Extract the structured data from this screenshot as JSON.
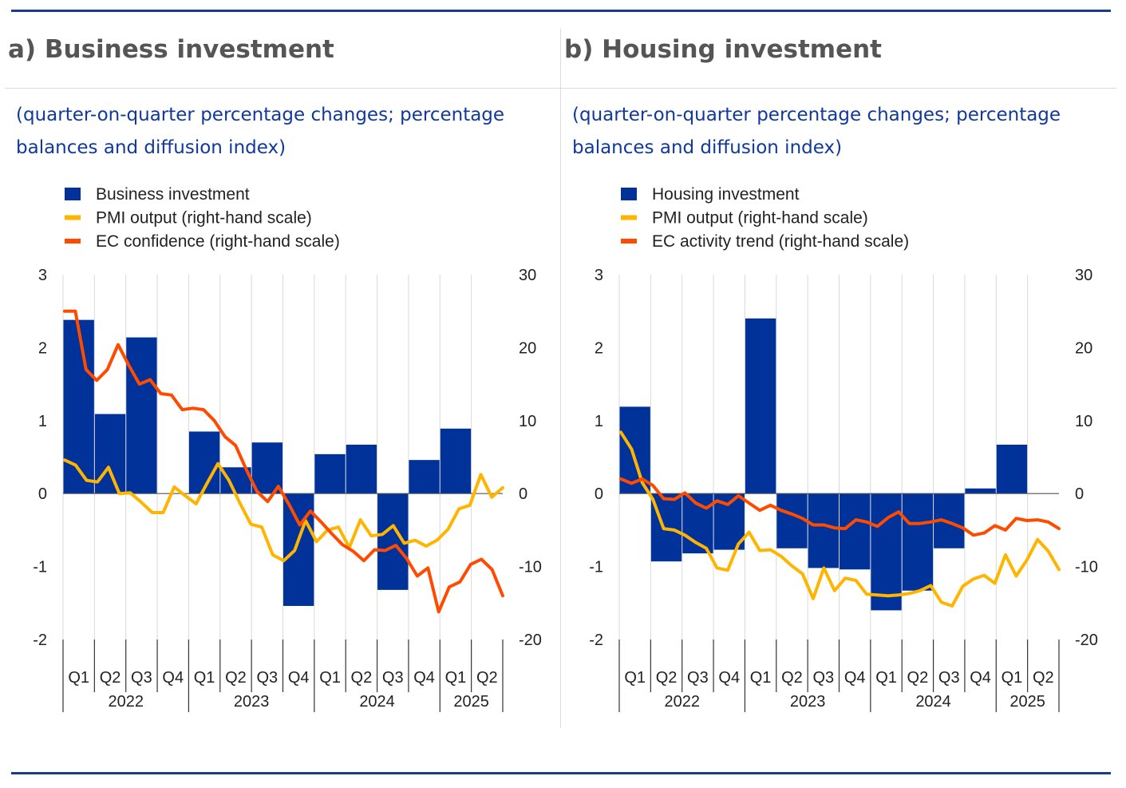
{
  "panels": [
    {
      "title": "a) Business investment",
      "subtitle": "(quarter-on-quarter percentage changes; percentage balances and diffusion index)"
    },
    {
      "title": "b) Housing investment",
      "subtitle": "(quarter-on-quarter percentage changes; percentage balances and diffusion index)"
    }
  ],
  "colors": {
    "bar": "#003299",
    "pmi": "#ffb400",
    "ec": "#ff4b00",
    "rule": "#1a3a8a",
    "subtitle": "#10399a"
  },
  "chart_data": [
    {
      "type": "bar",
      "title": "a) Business investment",
      "quarters": [
        "Q1",
        "Q2",
        "Q3",
        "Q4",
        "Q1",
        "Q2",
        "Q3",
        "Q4",
        "Q1",
        "Q2",
        "Q3",
        "Q4",
        "Q1",
        "Q2"
      ],
      "years": [
        {
          "label": "2022",
          "start": 0,
          "span": 4
        },
        {
          "label": "2023",
          "start": 4,
          "span": 4
        },
        {
          "label": "2024",
          "start": 8,
          "span": 4
        },
        {
          "label": "2025",
          "start": 12,
          "span": 2
        }
      ],
      "ylim_left": [
        -2,
        3
      ],
      "yticks_left": [
        "3",
        "2",
        "1",
        "0",
        "-1",
        "-2"
      ],
      "ylim_right": [
        -20,
        30
      ],
      "yticks_right": [
        "30",
        "20",
        "10",
        "0",
        "-10",
        "-20"
      ],
      "legend": [
        "Business investment",
        "PMI output (right-hand scale)",
        "EC confidence (right-hand scale)"
      ],
      "bars": {
        "name": "Business investment",
        "values": [
          2.38,
          1.09,
          2.14,
          0.0,
          0.85,
          0.36,
          0.7,
          -1.54,
          0.54,
          0.67,
          -1.32,
          0.46,
          0.89,
          0.0
        ]
      },
      "lines": [
        {
          "name": "PMI output (right-hand scale)",
          "color_key": "pmi",
          "values": [
            4.6,
            3.9,
            1.8,
            1.6,
            3.6,
            0,
            0.1,
            -1.2,
            -2.6,
            -2.6,
            0.9,
            -0.3,
            -1.4,
            1.4,
            4.1,
            1.8,
            -1.3,
            -4.2,
            -4.6,
            -8.4,
            -9.2,
            -7.8,
            -3.7,
            -6.6,
            -5,
            -4.6,
            -7.4,
            -3.6,
            -5.8,
            -5.6,
            -4.4,
            -6.8,
            -6.4,
            -7.2,
            -6.4,
            -4.9,
            -2.1,
            -1.6,
            2.6,
            -0.5,
            0.8
          ]
        },
        {
          "name": "EC confidence (right-hand scale)",
          "color_key": "ec",
          "values": [
            25,
            25,
            17,
            15.5,
            17,
            20.4,
            17.6,
            15,
            15.6,
            13.7,
            13.5,
            11.5,
            11.7,
            11.5,
            10,
            7.8,
            6.6,
            3.3,
            0.3,
            -1.1,
            1,
            -1.5,
            -4.3,
            -2.4,
            -3.9,
            -5.5,
            -7,
            -7.9,
            -9.2,
            -7.7,
            -7.8,
            -7.1,
            -8.9,
            -11.3,
            -10.2,
            -16.2,
            -12.8,
            -12.1,
            -9.7,
            -9,
            -10.4,
            -14
          ]
        }
      ]
    },
    {
      "type": "bar",
      "title": "b) Housing investment",
      "quarters": [
        "Q1",
        "Q2",
        "Q3",
        "Q4",
        "Q1",
        "Q2",
        "Q3",
        "Q4",
        "Q1",
        "Q2",
        "Q3",
        "Q4",
        "Q1",
        "Q2"
      ],
      "years": [
        {
          "label": "2022",
          "start": 0,
          "span": 4
        },
        {
          "label": "2023",
          "start": 4,
          "span": 4
        },
        {
          "label": "2024",
          "start": 8,
          "span": 4
        },
        {
          "label": "2025",
          "start": 12,
          "span": 2
        }
      ],
      "ylim_left": [
        -2,
        3
      ],
      "yticks_left": [
        "3",
        "2",
        "1",
        "0",
        "-1",
        "-2"
      ],
      "ylim_right": [
        -20,
        30
      ],
      "yticks_right": [
        "30",
        "20",
        "10",
        "0",
        "-10",
        "-20"
      ],
      "legend": [
        "Housing investment",
        "PMI output (right-hand scale)",
        "EC activity trend (right-hand scale)"
      ],
      "bars": {
        "name": "Housing investment",
        "values": [
          1.19,
          -0.93,
          -0.82,
          -0.77,
          2.4,
          -0.75,
          -1.02,
          -1.04,
          -1.6,
          -1.33,
          -0.75,
          0.07,
          0.67,
          0.0
        ]
      },
      "lines": [
        {
          "name": "PMI output (right-hand scale)",
          "color_key": "pmi",
          "values": [
            8.4,
            6.1,
            1.5,
            -0.8,
            -4.8,
            -5,
            -5.7,
            -6.7,
            -7.5,
            -10.2,
            -10.5,
            -6.9,
            -5.3,
            -7.8,
            -7.7,
            -8.6,
            -9.9,
            -11,
            -14.4,
            -10.2,
            -13.3,
            -11.6,
            -11.9,
            -13.8,
            -13.9,
            -14,
            -13.9,
            -13.7,
            -13.3,
            -12.6,
            -14.9,
            -15.4,
            -12.7,
            -11.7,
            -11.2,
            -12.3,
            -8.4,
            -11.3,
            -9.1,
            -6.3,
            -7.9,
            -10.4
          ]
        },
        {
          "name": "EC activity trend (right-hand scale)",
          "color_key": "ec",
          "values": [
            2,
            1.4,
            2,
            1.1,
            -0.7,
            -0.8,
            0.1,
            -1.3,
            -2,
            -1,
            -1.5,
            -0.3,
            -1.3,
            -2.3,
            -1.6,
            -2.3,
            -2.8,
            -3.4,
            -4.3,
            -4.3,
            -4.7,
            -4.8,
            -3.6,
            -3.9,
            -4.5,
            -3.3,
            -2.5,
            -4.1,
            -4.1,
            -3.9,
            -3.6,
            -4.1,
            -4.7,
            -5.7,
            -5.4,
            -4.4,
            -5,
            -3.4,
            -3.7,
            -3.6,
            -3.9,
            -4.8
          ]
        }
      ]
    }
  ]
}
